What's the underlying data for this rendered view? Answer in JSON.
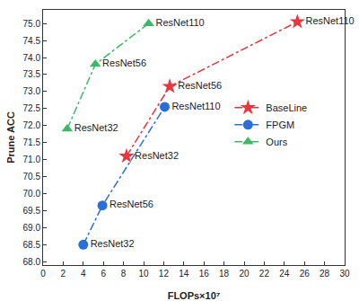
{
  "chart_data": {
    "type": "line",
    "x_label": "FLOPs×10⁷",
    "y_label": "Prune ACC",
    "xlim": [
      0,
      30
    ],
    "xticks": [
      0,
      2,
      4,
      6,
      8,
      10,
      12,
      14,
      16,
      18,
      20,
      22,
      24,
      26,
      28,
      30
    ],
    "ylim": [
      67.9,
      75.4
    ],
    "yticks": [
      {
        "value": 68.0,
        "label": "68.0"
      },
      {
        "value": 68.5,
        "label": "68.5"
      },
      {
        "value": 69.0,
        "label": "69.0"
      },
      {
        "value": 69.5,
        "label": "69.5"
      },
      {
        "value": 70.0,
        "label": "70.0"
      },
      {
        "value": 70.5,
        "label": "70.5"
      },
      {
        "value": 71.0,
        "label": "71.0"
      },
      {
        "value": 71.5,
        "label": "71.5"
      },
      {
        "value": 72.0,
        "label": "72.0"
      },
      {
        "value": 72.5,
        "label": "72.5"
      },
      {
        "value": 73.0,
        "label": "73.0"
      },
      {
        "value": 73.5,
        "label": "73.5"
      },
      {
        "value": 74.0,
        "label": "74.0"
      },
      {
        "value": 74.5,
        "label": "74.5"
      },
      {
        "value": 75.0,
        "label": "75.0"
      }
    ],
    "grid": false,
    "legend": "center right",
    "series": [
      {
        "name": "BaseLine",
        "color": "#e8353f",
        "marker": "star",
        "line_style": "dashdot",
        "x": [
          8.3,
          12.6,
          25.3
        ],
        "values": [
          71.1,
          73.15,
          75.05
        ],
        "point_labels": [
          "ResNet32",
          "ResNet56",
          "ResNet110"
        ]
      },
      {
        "name": "FPGM",
        "color": "#2a6fd8",
        "marker": "circle",
        "line_style": "dashdot",
        "x": [
          4.0,
          5.9,
          12.1
        ],
        "values": [
          68.5,
          69.65,
          72.55
        ],
        "point_labels": [
          "ResNet32",
          "ResNet56",
          "ResNet110"
        ]
      },
      {
        "name": "Ours",
        "color": "#3cb868",
        "marker": "triangle-up",
        "line_style": "dashdot",
        "x": [
          2.4,
          5.2,
          10.5
        ],
        "values": [
          71.9,
          73.8,
          75.0
        ],
        "point_labels": [
          "ResNet32",
          "ResNet56",
          "ResNet110"
        ]
      }
    ]
  }
}
